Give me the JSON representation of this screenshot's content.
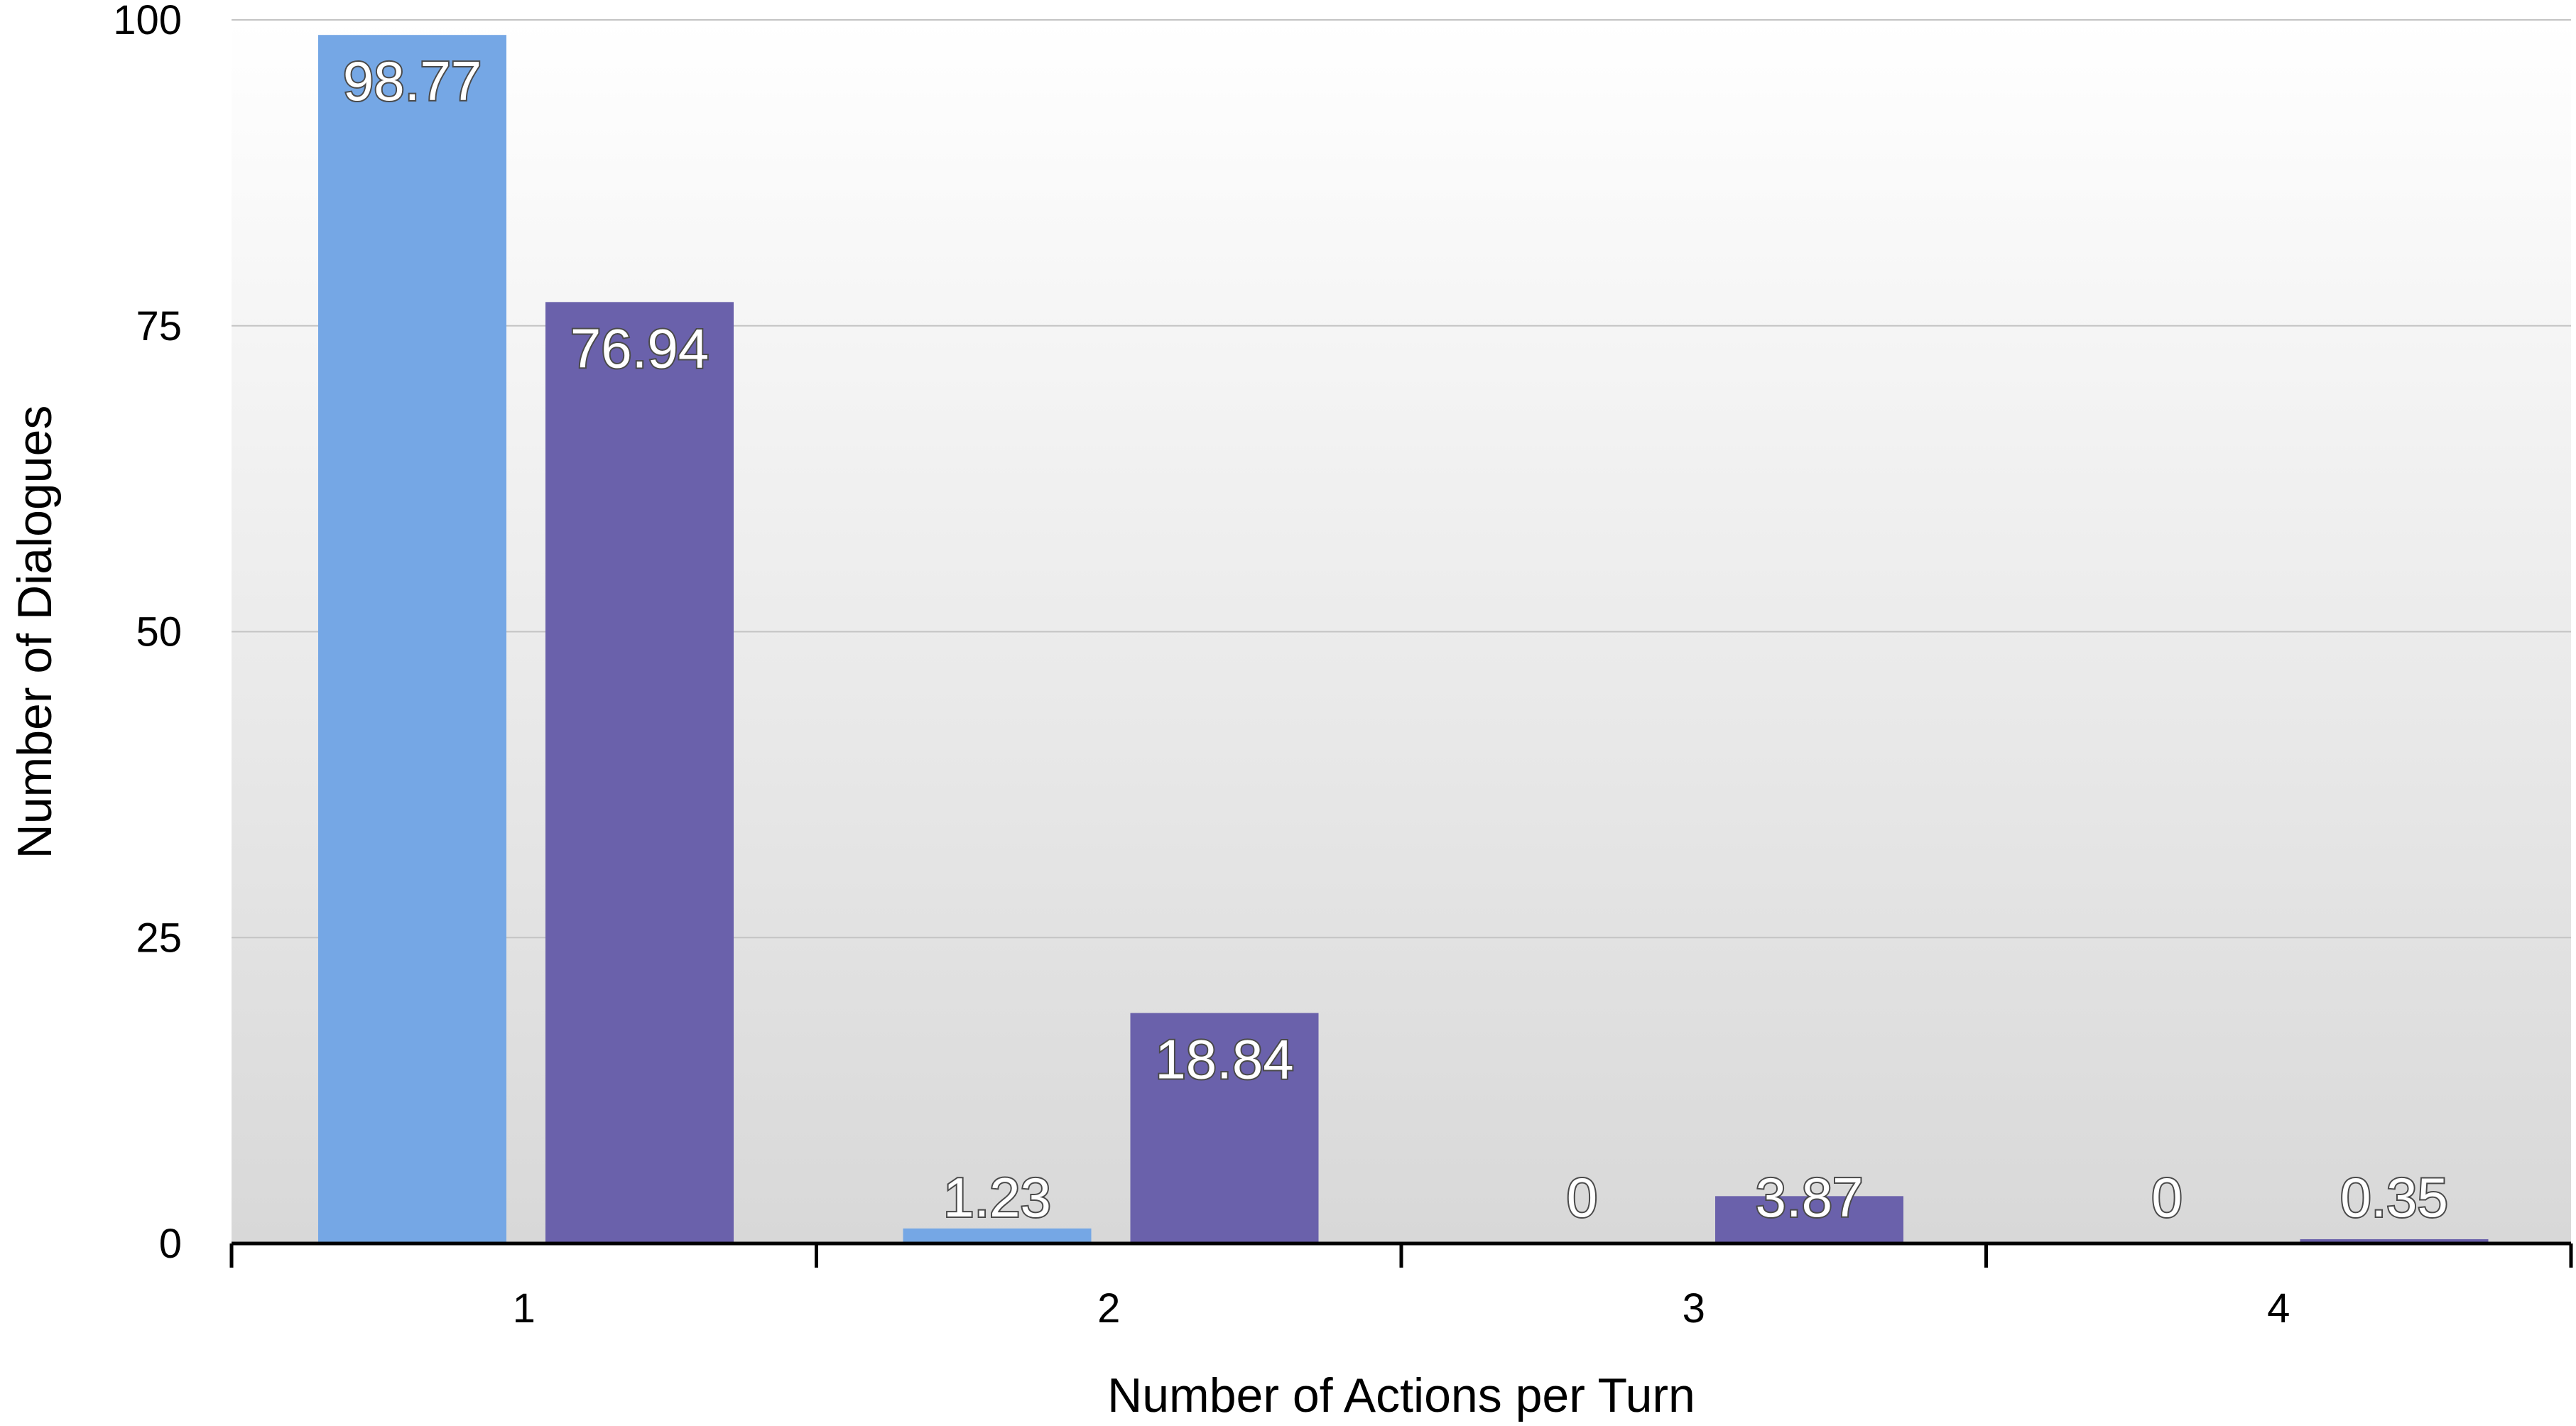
{
  "chart_data": {
    "type": "bar",
    "title": "",
    "xlabel": "Number of Actions per Turn",
    "ylabel": "Number of Dialogues",
    "categories": [
      "1",
      "2",
      "3",
      "4"
    ],
    "series": [
      {
        "values": [
          98.77,
          1.23,
          0,
          0
        ],
        "labels": [
          "98.77",
          "1.23",
          "0",
          "0"
        ],
        "color": "#75a7e5"
      },
      {
        "values": [
          76.94,
          18.84,
          3.87,
          0.35
        ],
        "labels": [
          "76.94",
          "18.84",
          "3.87",
          "0.35"
        ],
        "color": "#6a61ab"
      }
    ],
    "ylim": [
      0,
      100
    ],
    "yticks": [
      "0",
      "25",
      "50",
      "75",
      "100"
    ],
    "grid": true,
    "legend": "none"
  }
}
